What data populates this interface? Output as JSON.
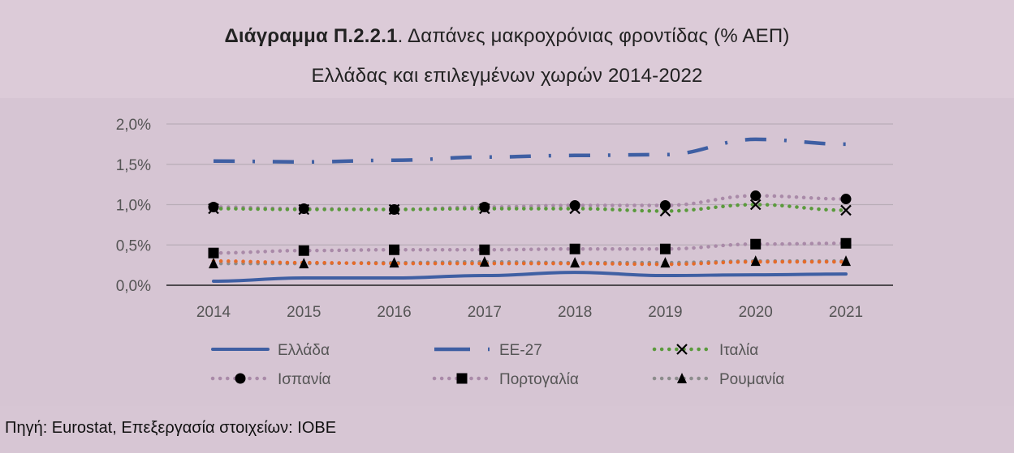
{
  "title": {
    "line1_bold": "Διάγραμμα Π.2.2.1",
    "line1_rest": ". Δαπάνες μακροχρόνιας φροντίδας (% ΑΕΠ)",
    "line2": "Ελλάδας και επιλεγμένων χωρών 2014-2022"
  },
  "source": "Πηγή: Eurostat, Επεξεργασία στοιχείων: ΙΟΒΕ",
  "chart_data": {
    "type": "line",
    "x": [
      "2014",
      "2015",
      "2016",
      "2017",
      "2018",
      "2019",
      "2020",
      "2021"
    ],
    "ylim": [
      0,
      2.0
    ],
    "yticks": [
      0,
      0.5,
      1.0,
      1.5,
      2.0
    ],
    "ytick_labels": [
      "0,0%",
      "0,5%",
      "1,0%",
      "1,5%",
      "2,0%"
    ],
    "grid": true,
    "legend_position": "bottom",
    "series": [
      {
        "name": "Ελλάδα",
        "values": [
          0.05,
          0.09,
          0.09,
          0.12,
          0.16,
          0.12,
          0.13,
          0.14
        ],
        "color": "#3f5fa3",
        "style": "solid",
        "marker": "none"
      },
      {
        "name": "ΕΕ-27",
        "values": [
          1.54,
          1.53,
          1.55,
          1.59,
          1.61,
          1.62,
          1.81,
          1.75
        ],
        "color": "#3f5fa3",
        "style": "dashdot",
        "marker": "none"
      },
      {
        "name": "Ιταλία",
        "values": [
          0.95,
          0.94,
          0.94,
          0.95,
          0.95,
          0.92,
          1.0,
          0.93
        ],
        "color": "#5a9a3c",
        "style": "dotted",
        "marker": "x"
      },
      {
        "name": "Ισπανία",
        "values": [
          0.97,
          0.95,
          0.94,
          0.97,
          0.99,
          0.99,
          1.11,
          1.07
        ],
        "color": "#a98aa8",
        "style": "dotted",
        "marker": "circle"
      },
      {
        "name": "Πορτογαλία",
        "values": [
          0.4,
          0.43,
          0.44,
          0.44,
          0.45,
          0.45,
          0.51,
          0.52
        ],
        "color": "#a98aa8",
        "style": "dotted",
        "marker": "square"
      },
      {
        "name": "Ρουμανία",
        "values": [
          0.27,
          0.27,
          0.28,
          0.29,
          0.28,
          0.28,
          0.3,
          0.3
        ],
        "color": "#8c8c8c",
        "style": "dotted",
        "marker": "triangle"
      },
      {
        "name": "",
        "values": [
          0.3,
          0.28,
          0.27,
          0.27,
          0.27,
          0.26,
          0.29,
          0.29
        ],
        "color": "#e56b2a",
        "style": "dotted",
        "marker": "none",
        "in_legend": false
      }
    ]
  }
}
